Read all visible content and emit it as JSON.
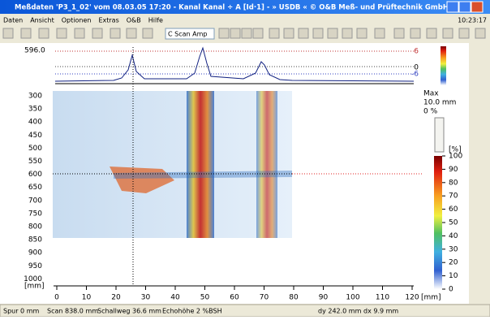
{
  "window": {
    "title": "Meßdaten 'P3_1_02' vom 08.03.05 17:20  -  Kanal Kanal ÷ A  [Id·1]  -  » USDB «  © O&B Meß- und Prüftechnik GmbH"
  },
  "menu": {
    "items": [
      "Daten",
      "Ansicht",
      "Optionen",
      "Extras",
      "O&B",
      "Hilfe"
    ],
    "clock": "10:23:17"
  },
  "toolbar": {
    "mode": "C Scan Amp"
  },
  "a_scan": {
    "label": "596.0",
    "levels": [
      "6",
      "0",
      "-6"
    ]
  },
  "c_scan": {
    "y_labels": [
      "300",
      "350",
      "400",
      "450",
      "500",
      "550",
      "600",
      "650",
      "700",
      "750",
      "800",
      "850",
      "900",
      "950",
      "1000"
    ],
    "y_unit": "[mm]",
    "x_labels": [
      "0",
      "10",
      "20",
      "30",
      "40",
      "50",
      "60",
      "70",
      "80",
      "90",
      "100",
      "110",
      "120"
    ],
    "x_unit": "[mm]"
  },
  "side_panel": {
    "max": "Max",
    "max_value": "10.0 mm",
    "percent": "0 %",
    "scale_unit": "[%]",
    "scale_labels": [
      "100",
      "90",
      "80",
      "70",
      "60",
      "50",
      "40",
      "30",
      "20",
      "10",
      "0"
    ]
  },
  "status": [
    "Spur 0 mm",
    "Scan 838.0 mm",
    "Schallweg 36.6 mm",
    "Echohöhe 2 %BSH",
    "dy 242.0 mm",
    "dx 9.9 mm"
  ]
}
